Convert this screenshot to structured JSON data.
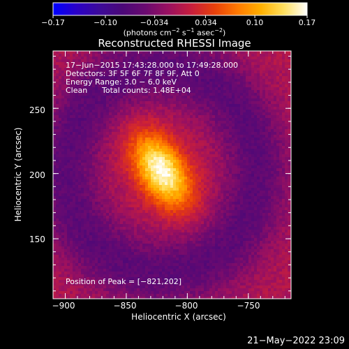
{
  "chart_data": {
    "type": "heatmap",
    "title": "Reconstructed RHESSI Image",
    "xlabel": "Heliocentric X (arcsec)",
    "ylabel": "Heliocentric Y (arcsec)",
    "xlim": [
      -910,
      -715
    ],
    "ylim": [
      104,
      294
    ],
    "xticks": [
      {
        "value": -900,
        "label": "−900"
      },
      {
        "value": -850,
        "label": "−850"
      },
      {
        "value": -800,
        "label": "−800"
      },
      {
        "value": -750,
        "label": "−750"
      }
    ],
    "yticks": [
      {
        "value": 250,
        "label": "250"
      },
      {
        "value": 200,
        "label": "200"
      },
      {
        "value": 150,
        "label": "150"
      }
    ],
    "colorbar": {
      "range": [
        -0.17,
        0.17
      ],
      "ticks": [
        {
          "value": -0.17,
          "label": "−0.17"
        },
        {
          "value": -0.1,
          "label": "−0.10"
        },
        {
          "value": -0.034,
          "label": "−0.034"
        },
        {
          "value": 0.034,
          "label": "0.034"
        },
        {
          "value": 0.1,
          "label": "0.10"
        },
        {
          "value": 0.17,
          "label": "0.17"
        }
      ],
      "units_main": "(photons cm",
      "units_exp1": "−2",
      "units_mid": " s",
      "units_exp2": "−1",
      "units_mid2": " asec",
      "units_exp3": "−2",
      "units_end": ")",
      "colors": [
        "#0000ff",
        "#2a00c8",
        "#3c0a9a",
        "#4b0878",
        "#6a0a70",
        "#9a1060",
        "#c81e3c",
        "#e8400a",
        "#ff7a00",
        "#ffb000",
        "#ffe060",
        "#ffffff"
      ]
    },
    "source": {
      "x": -821,
      "y": 202,
      "sigma_x": 13,
      "sigma_y": 22,
      "angle_deg": 35,
      "peak": 0.17
    },
    "annotations": {
      "time": "17−Jun−2015 17:43:28.000 to 17:49:28.000",
      "detectors": "Detectors: 3F 5F 6F 7F 8F 9F, Att 0",
      "energy": "Energy Range: 3.0 − 6.0 keV",
      "method": "Clean",
      "counts": "Total counts: 1.48E+04",
      "peak_position": "Position of Peak = [−821,202]"
    }
  },
  "footer_date": "21−May−2022 23:09"
}
